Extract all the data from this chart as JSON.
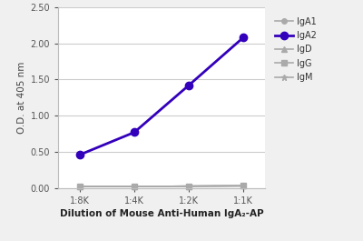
{
  "x_labels": [
    "1:8K",
    "1:4K",
    "1:2K",
    "1:1K"
  ],
  "x_values": [
    0,
    1,
    2,
    3
  ],
  "series": [
    {
      "name": "IgA1",
      "values": [
        0.02,
        0.02,
        0.025,
        0.03
      ],
      "color": "#aaaaaa",
      "marker": "o",
      "markersize": 4,
      "linewidth": 1.2,
      "zorder": 2
    },
    {
      "name": "IgA2",
      "values": [
        0.46,
        0.77,
        1.42,
        2.08
      ],
      "color": "#3300bb",
      "marker": "o",
      "markersize": 6,
      "linewidth": 2.0,
      "zorder": 5
    },
    {
      "name": "IgD",
      "values": [
        0.02,
        0.02,
        0.025,
        0.03
      ],
      "color": "#aaaaaa",
      "marker": "^",
      "markersize": 4,
      "linewidth": 1.2,
      "zorder": 2
    },
    {
      "name": "IgG",
      "values": [
        0.02,
        0.02,
        0.025,
        0.03
      ],
      "color": "#aaaaaa",
      "marker": "s",
      "markersize": 4,
      "linewidth": 1.2,
      "zorder": 2
    },
    {
      "name": "IgM",
      "values": [
        0.02,
        0.02,
        0.025,
        0.03
      ],
      "color": "#aaaaaa",
      "marker": "*",
      "markersize": 5,
      "linewidth": 1.2,
      "zorder": 2
    }
  ],
  "ylabel": "O.D. at 405 nm",
  "xlabel": "Dilution of Mouse Anti-Human IgA₂-AP",
  "ylim": [
    0.0,
    2.5
  ],
  "yticks": [
    0.0,
    0.5,
    1.0,
    1.5,
    2.0,
    2.5
  ],
  "fig_bg_color": "#f0f0f0",
  "plot_bg_color": "#ffffff",
  "grid_color": "#cccccc",
  "spine_color": "#bbbbbb",
  "legend_fontsize": 7,
  "xlabel_fontsize": 7.5,
  "ylabel_fontsize": 7.5,
  "tick_fontsize": 7
}
